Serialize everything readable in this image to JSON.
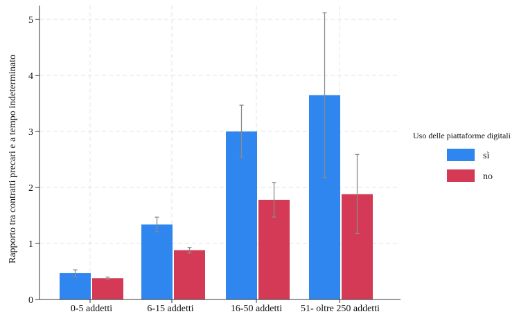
{
  "chart_data": {
    "type": "bar",
    "title": "",
    "xlabel": "",
    "ylabel": "Rapporto tra contratti precari e a tempo indeterminato",
    "ylim": [
      0,
      5.25
    ],
    "yticks": [
      "0",
      "1",
      "2",
      "3",
      "4",
      "5"
    ],
    "grid": true,
    "legend_placement": "right",
    "legend_title": "Uso delle piattaforme digitali",
    "categories": [
      "0-5 addetti",
      "6-15 addetti",
      "16-50 addetti",
      "51- oltre 250 addetti"
    ],
    "series": [
      {
        "name": "sì",
        "color": "#2f86ee",
        "values": [
          0.47,
          1.34,
          3.0,
          3.65
        ],
        "ci_low": [
          0.41,
          1.21,
          2.54,
          2.18
        ],
        "ci_high": [
          0.53,
          1.47,
          3.47,
          5.12
        ]
      },
      {
        "name": "no",
        "color": "#d43a55",
        "values": [
          0.38,
          0.88,
          1.78,
          1.88
        ],
        "ci_low": [
          0.36,
          0.83,
          1.47,
          1.18
        ],
        "ci_high": [
          0.4,
          0.93,
          2.09,
          2.59
        ]
      }
    ]
  }
}
